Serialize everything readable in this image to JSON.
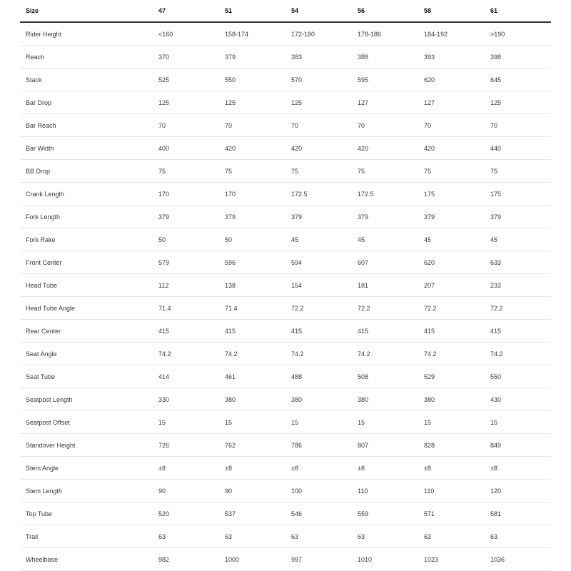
{
  "table": {
    "headers": [
      "Size",
      "47",
      "51",
      "54",
      "56",
      "58",
      "61"
    ],
    "rows": [
      [
        "Rider Height",
        "<160",
        "158-174",
        "172-180",
        "178-186",
        "184-192",
        ">190"
      ],
      [
        "Reach",
        "370",
        "379",
        "383",
        "388",
        "393",
        "398"
      ],
      [
        "Stack",
        "525",
        "550",
        "570",
        "595",
        "620",
        "645"
      ],
      [
        "Bar Drop",
        "125",
        "125",
        "125",
        "127",
        "127",
        "125"
      ],
      [
        "Bar Reach",
        "70",
        "70",
        "70",
        "70",
        "70",
        "70"
      ],
      [
        "Bar Width",
        "400",
        "420",
        "420",
        "420",
        "420",
        "440"
      ],
      [
        "BB Drop",
        "75",
        "75",
        "75",
        "75",
        "75",
        "75"
      ],
      [
        "Crank Length",
        "170",
        "170",
        "172.5",
        "172.5",
        "175",
        "175"
      ],
      [
        "Fork Length",
        "379",
        "379",
        "379",
        "379",
        "379",
        "379"
      ],
      [
        "Fork Rake",
        "50",
        "50",
        "45",
        "45",
        "45",
        "45"
      ],
      [
        "Front Center",
        "579",
        "596",
        "594",
        "607",
        "620",
        "633"
      ],
      [
        "Head Tube",
        "112",
        "138",
        "154",
        "181",
        "207",
        "233"
      ],
      [
        "Head Tube Angle",
        "71.4",
        "71.4",
        "72.2",
        "72.2",
        "72.2",
        "72.2"
      ],
      [
        "Rear Center",
        "415",
        "415",
        "415",
        "415",
        "415",
        "415"
      ],
      [
        "Seat Angle",
        "74.2",
        "74.2",
        "74.2",
        "74.2",
        "74.2",
        "74.2"
      ],
      [
        "Seat Tube",
        "414",
        "461",
        "488",
        "508",
        "529",
        "550"
      ],
      [
        "Seatpost Length",
        "330",
        "380",
        "380",
        "380",
        "380",
        "430"
      ],
      [
        "Seatpost Offset",
        "15",
        "15",
        "15",
        "15",
        "15",
        "15"
      ],
      [
        "Standover Height",
        "726",
        "762",
        "786",
        "807",
        "828",
        "849"
      ],
      [
        "Stem Angle",
        "±8",
        "±8",
        "±8",
        "±8",
        "±8",
        "±8"
      ],
      [
        "Stem Length",
        "90",
        "90",
        "100",
        "110",
        "110",
        "120"
      ],
      [
        "Top Tube",
        "520",
        "537",
        "546",
        "559",
        "571",
        "581"
      ],
      [
        "Trail",
        "63",
        "63",
        "63",
        "63",
        "63",
        "63"
      ],
      [
        "Wheelbase",
        "982",
        "1000",
        "997",
        "1010",
        "1023",
        "1036"
      ]
    ]
  }
}
